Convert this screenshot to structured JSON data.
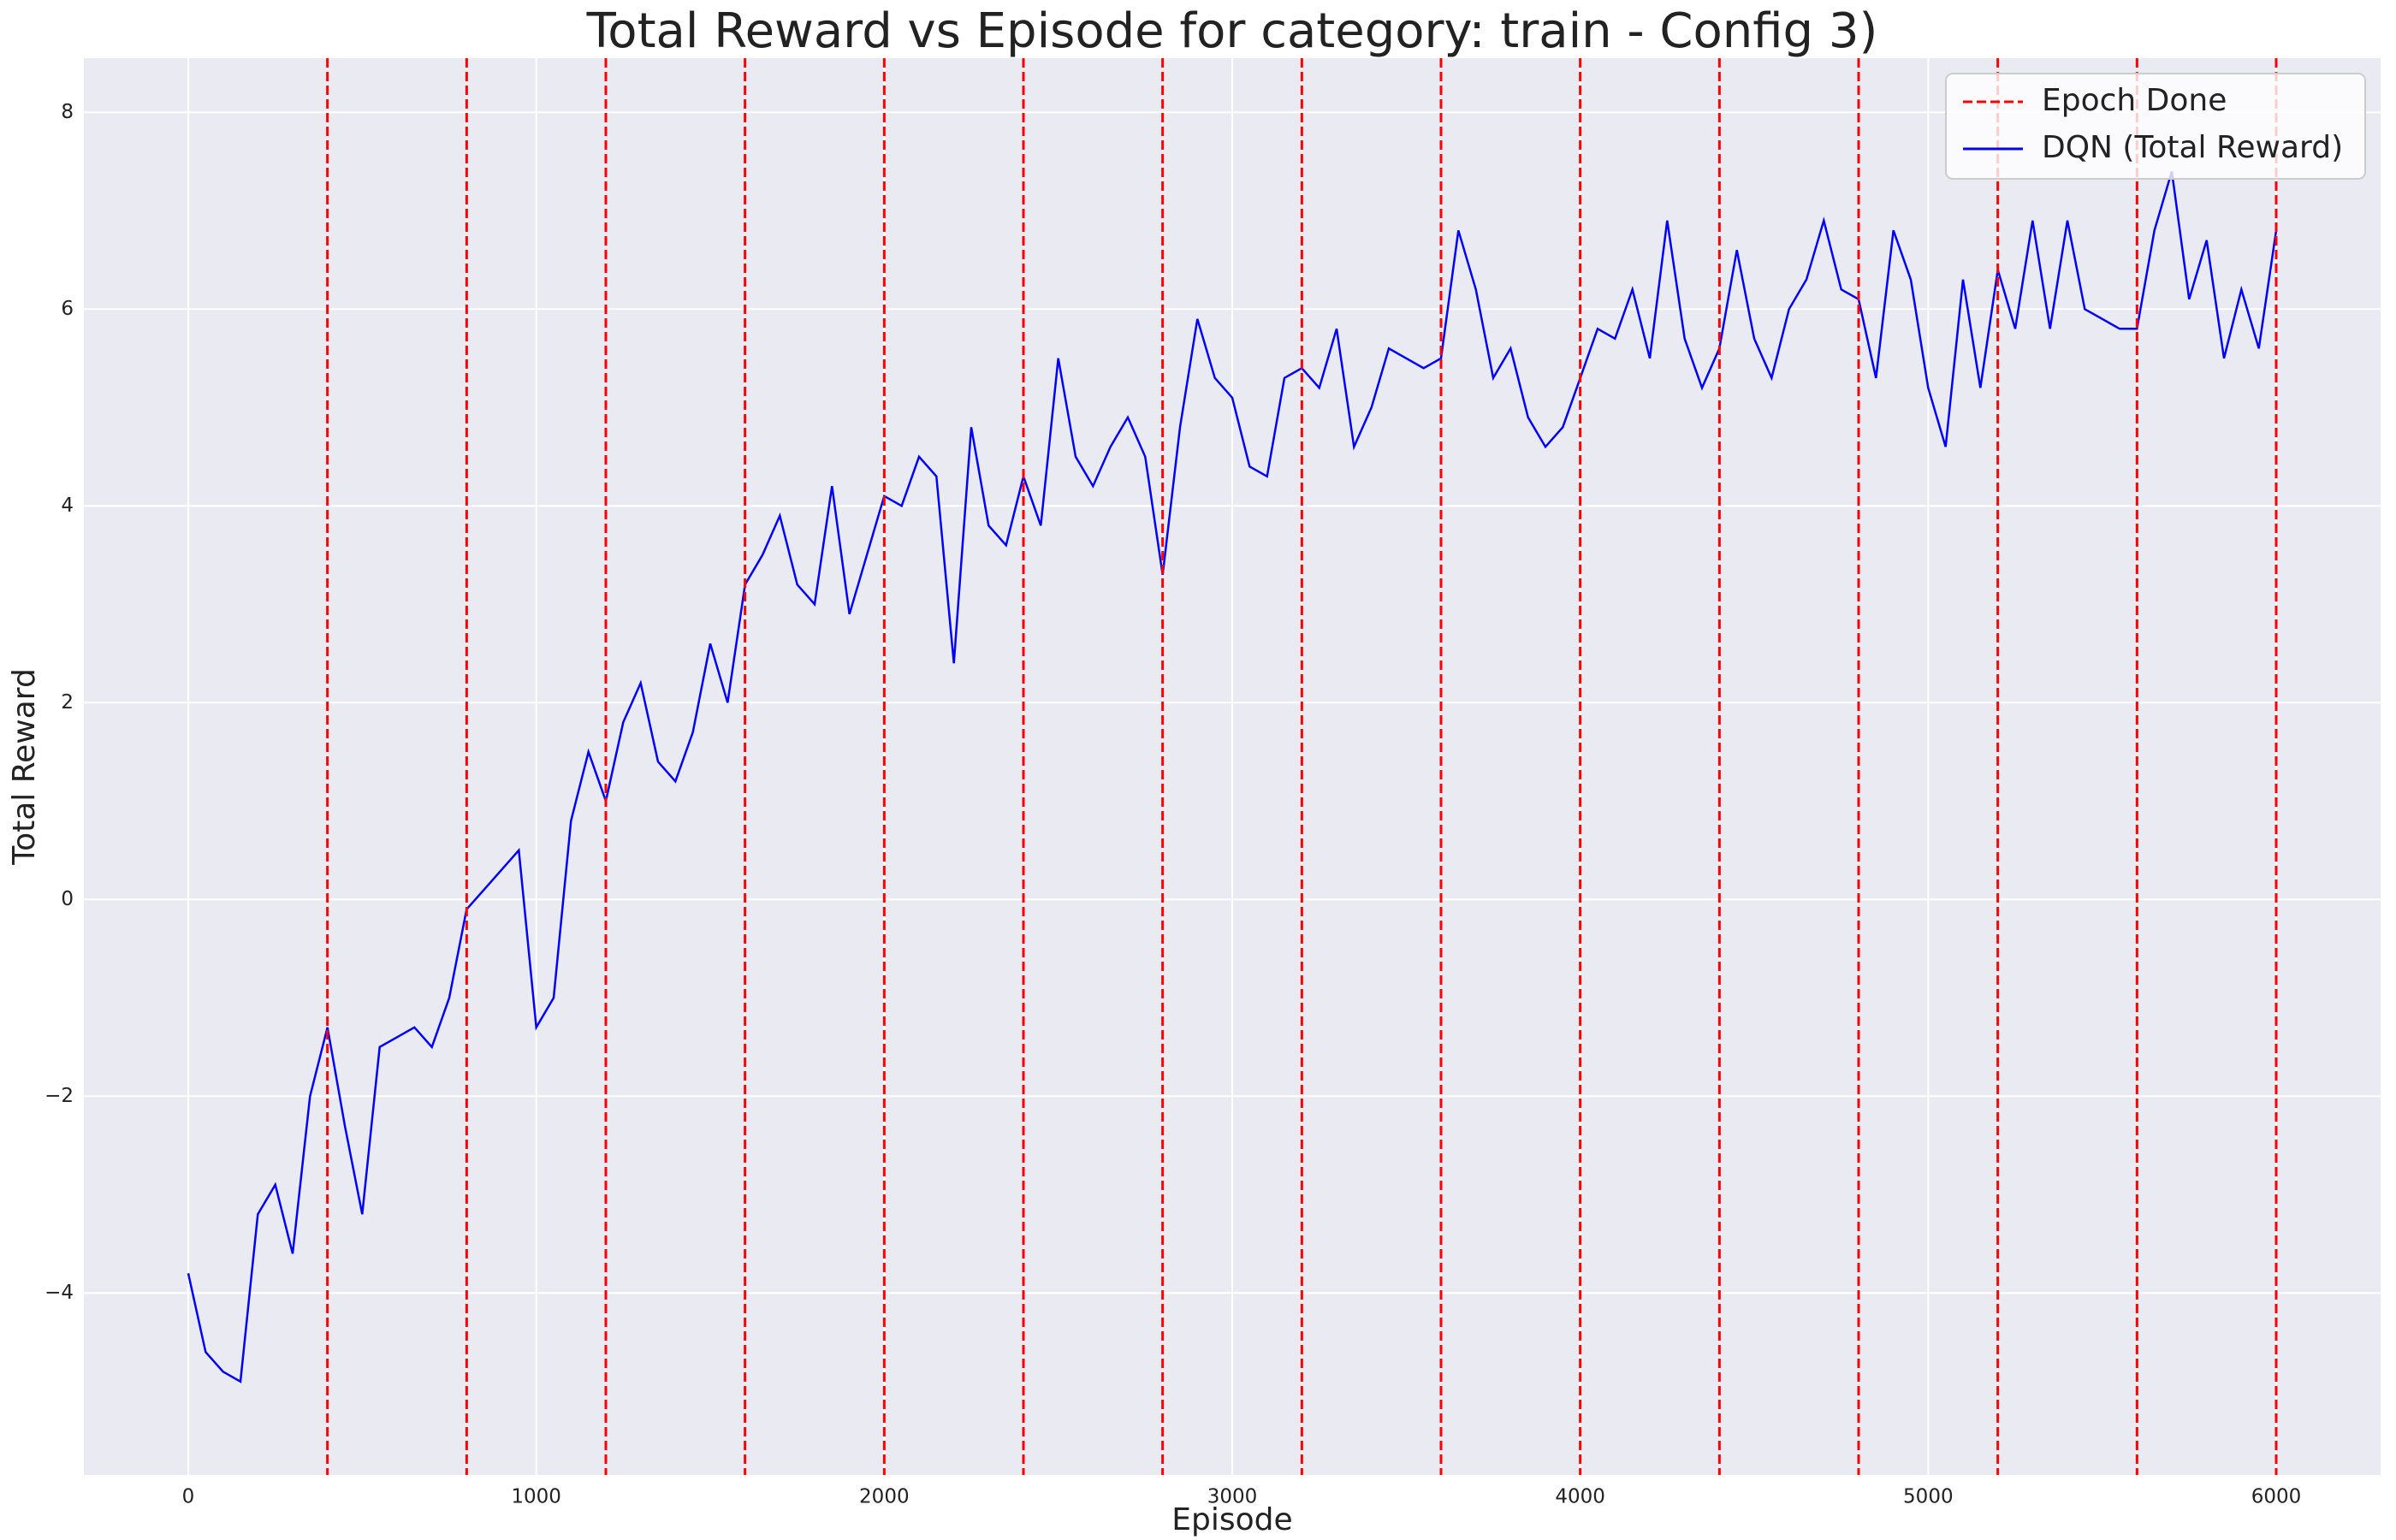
{
  "chart_data": {
    "type": "line",
    "title": "Total Reward vs Episode for category: train - Config 3)",
    "x_label": "Episode",
    "y_label": "Total Reward",
    "xlim": [
      -300,
      6300
    ],
    "ylim": [
      -5.85,
      8.55
    ],
    "xticks": [
      0,
      1000,
      2000,
      3000,
      4000,
      5000,
      6000
    ],
    "yticks": [
      {
        "value": -4,
        "label": "−4"
      },
      {
        "value": -2,
        "label": "−2"
      },
      0,
      2,
      4,
      6,
      8
    ],
    "grid": true,
    "legend": "upper right",
    "vlines": {
      "name": "Epoch Done",
      "color": "#ff0000",
      "x": [
        400,
        800,
        1200,
        1600,
        2000,
        2400,
        2800,
        3200,
        3600,
        4000,
        4400,
        4800,
        5200,
        5600,
        6000
      ]
    },
    "x": [
      0,
      50,
      100,
      150,
      200,
      250,
      300,
      350,
      400,
      450,
      500,
      550,
      600,
      650,
      700,
      750,
      800,
      850,
      900,
      950,
      1000,
      1050,
      1100,
      1150,
      1200,
      1250,
      1300,
      1350,
      1400,
      1450,
      1500,
      1550,
      1600,
      1650,
      1700,
      1750,
      1800,
      1850,
      1900,
      1950,
      2000,
      2050,
      2100,
      2150,
      2200,
      2250,
      2300,
      2350,
      2400,
      2450,
      2500,
      2550,
      2600,
      2650,
      2700,
      2750,
      2800,
      2850,
      2900,
      2950,
      3000,
      3050,
      3100,
      3150,
      3200,
      3250,
      3300,
      3350,
      3400,
      3450,
      3500,
      3550,
      3600,
      3650,
      3700,
      3750,
      3800,
      3850,
      3900,
      3950,
      4000,
      4050,
      4100,
      4150,
      4200,
      4250,
      4300,
      4350,
      4400,
      4450,
      4500,
      4550,
      4600,
      4650,
      4700,
      4750,
      4800,
      4850,
      4900,
      4950,
      5000,
      5050,
      5100,
      5150,
      5200,
      5250,
      5300,
      5350,
      5400,
      5450,
      5500,
      5550,
      5600,
      5650,
      5700,
      5750,
      5800,
      5850,
      5900,
      5950,
      6000
    ],
    "series": [
      {
        "name": "DQN (Total Reward)",
        "color": "#0000ff",
        "values": [
          -3.8,
          -4.6,
          -4.8,
          -4.9,
          -3.2,
          -2.9,
          -3.6,
          -2.0,
          -1.3,
          -2.3,
          -3.2,
          -1.5,
          -1.4,
          -1.3,
          -1.5,
          -1.0,
          -0.1,
          0.1,
          0.3,
          0.5,
          -1.3,
          -1.0,
          0.8,
          1.5,
          1.0,
          1.8,
          2.2,
          1.4,
          1.2,
          1.7,
          2.6,
          2.0,
          3.2,
          3.5,
          3.9,
          3.2,
          3.0,
          4.2,
          2.9,
          3.5,
          4.1,
          4.0,
          4.5,
          4.3,
          2.4,
          4.8,
          3.8,
          3.6,
          4.3,
          3.8,
          5.5,
          4.5,
          4.2,
          4.6,
          4.9,
          4.5,
          3.3,
          4.8,
          5.9,
          5.3,
          5.1,
          4.4,
          4.3,
          5.3,
          5.4,
          5.2,
          5.8,
          4.6,
          5.0,
          5.6,
          5.5,
          5.4,
          5.5,
          6.8,
          6.2,
          5.3,
          5.6,
          4.9,
          4.6,
          4.8,
          5.3,
          5.8,
          5.7,
          6.2,
          5.5,
          6.9,
          5.7,
          5.2,
          5.6,
          6.6,
          5.7,
          5.3,
          6.0,
          6.3,
          6.9,
          6.2,
          6.1,
          5.3,
          6.8,
          6.3,
          5.2,
          4.6,
          6.3,
          5.2,
          6.4,
          5.8,
          6.9,
          5.8,
          6.9,
          6.0,
          5.9,
          5.8,
          5.8,
          6.8,
          7.4,
          6.1,
          6.7,
          5.5,
          6.2,
          5.6,
          6.8
        ]
      }
    ]
  }
}
